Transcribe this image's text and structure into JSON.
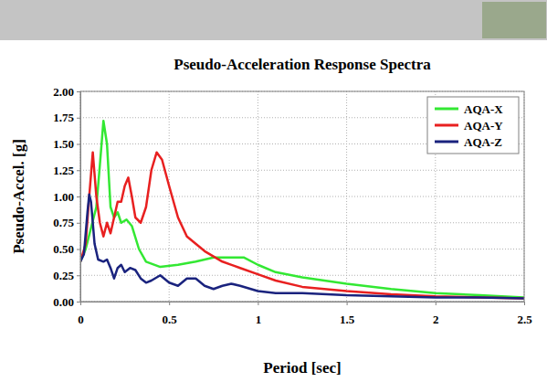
{
  "chart_data": {
    "type": "line",
    "title": "Pseudo-Acceleration Response Spectra",
    "x_label": "Period [sec]",
    "y_label": "Pseudo-Accel. [g]",
    "xlim": [
      0,
      2.5
    ],
    "ylim": [
      0,
      2
    ],
    "xticks": [
      0,
      0.5,
      1,
      1.5,
      2,
      2.5
    ],
    "yticks": [
      {
        "value": 0,
        "label": "0.00"
      },
      {
        "value": 0.25,
        "label": "0.25"
      },
      {
        "value": 0.5,
        "label": "0.50"
      },
      {
        "value": 0.75,
        "label": "0.75"
      },
      {
        "value": 1,
        "label": "1.00"
      },
      {
        "value": 1.25,
        "label": "1.25"
      },
      {
        "value": 1.5,
        "label": "1.50"
      },
      {
        "value": 1.75,
        "label": "1.75"
      },
      {
        "value": 2,
        "label": "2.00"
      }
    ],
    "grid": true,
    "legend": "top-right",
    "series": [
      {
        "name": "AQA-X",
        "color": "#33e833",
        "x": [
          0,
          0.03,
          0.06,
          0.09,
          0.11,
          0.13,
          0.15,
          0.17,
          0.19,
          0.21,
          0.23,
          0.26,
          0.29,
          0.33,
          0.37,
          0.45,
          0.55,
          0.65,
          0.75,
          0.85,
          0.92,
          1.0,
          1.1,
          1.25,
          1.5,
          1.75,
          2.0,
          2.25,
          2.5
        ],
        "values": [
          0.38,
          0.5,
          0.7,
          0.9,
          1.3,
          1.72,
          1.5,
          0.9,
          0.8,
          0.85,
          0.75,
          0.78,
          0.72,
          0.5,
          0.38,
          0.33,
          0.35,
          0.38,
          0.42,
          0.42,
          0.42,
          0.35,
          0.28,
          0.23,
          0.17,
          0.12,
          0.08,
          0.06,
          0.04
        ]
      },
      {
        "name": "AQA-Y",
        "color": "#e82020",
        "x": [
          0,
          0.03,
          0.05,
          0.07,
          0.09,
          0.11,
          0.13,
          0.15,
          0.17,
          0.19,
          0.21,
          0.23,
          0.25,
          0.27,
          0.29,
          0.31,
          0.34,
          0.37,
          0.4,
          0.43,
          0.46,
          0.5,
          0.55,
          0.6,
          0.7,
          0.8,
          0.9,
          1.0,
          1.1,
          1.25,
          1.5,
          1.75,
          2.0,
          2.25,
          2.5
        ],
        "values": [
          0.38,
          0.55,
          1.0,
          1.42,
          1.0,
          0.75,
          0.62,
          0.75,
          0.65,
          0.8,
          0.95,
          0.95,
          1.1,
          1.18,
          1.0,
          0.8,
          0.75,
          0.9,
          1.25,
          1.42,
          1.35,
          1.1,
          0.8,
          0.62,
          0.48,
          0.38,
          0.32,
          0.26,
          0.2,
          0.14,
          0.1,
          0.07,
          0.05,
          0.04,
          0.03
        ]
      },
      {
        "name": "AQA-Z",
        "color": "#1a237e",
        "x": [
          0,
          0.02,
          0.04,
          0.05,
          0.06,
          0.08,
          0.1,
          0.13,
          0.15,
          0.17,
          0.19,
          0.21,
          0.23,
          0.25,
          0.28,
          0.31,
          0.34,
          0.37,
          0.4,
          0.45,
          0.5,
          0.55,
          0.6,
          0.65,
          0.7,
          0.75,
          0.8,
          0.85,
          0.9,
          1.0,
          1.1,
          1.25,
          1.5,
          1.75,
          2.0,
          2.25,
          2.5
        ],
        "values": [
          0.38,
          0.45,
          0.85,
          1.02,
          0.95,
          0.55,
          0.4,
          0.38,
          0.4,
          0.32,
          0.22,
          0.32,
          0.35,
          0.28,
          0.32,
          0.3,
          0.22,
          0.18,
          0.2,
          0.25,
          0.18,
          0.15,
          0.22,
          0.22,
          0.15,
          0.12,
          0.15,
          0.17,
          0.15,
          0.1,
          0.08,
          0.08,
          0.06,
          0.05,
          0.04,
          0.04,
          0.03
        ]
      }
    ]
  }
}
